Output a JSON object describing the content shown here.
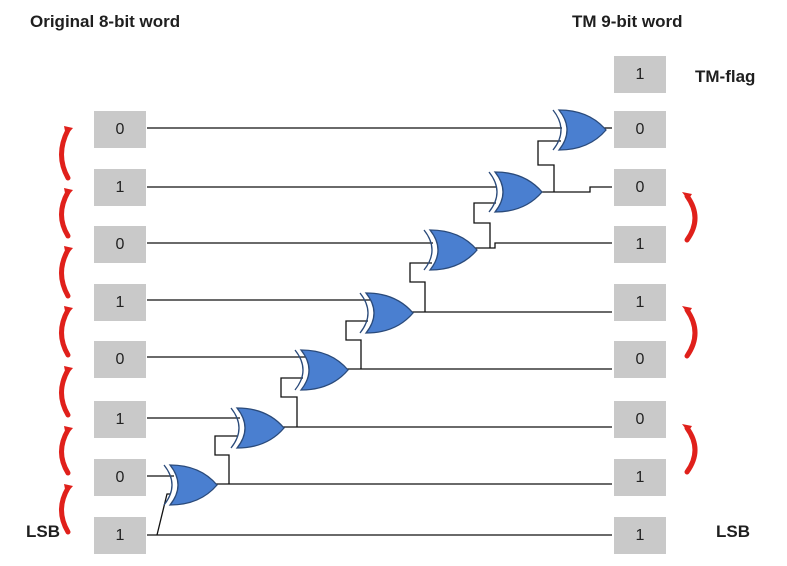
{
  "titles": {
    "original": "Original 8-bit word",
    "tm": "TM 9-bit word"
  },
  "tm_flag": {
    "label": "TM-flag",
    "value": "1"
  },
  "lsb_label": "LSB",
  "original_bits": [
    "0",
    "1",
    "0",
    "1",
    "0",
    "1",
    "0",
    "1"
  ],
  "tm_bits": [
    "0",
    "0",
    "1",
    "1",
    "0",
    "0",
    "1",
    "1"
  ],
  "colors": {
    "gate_fill": "#4a7fd0",
    "gate_stroke": "#2a4a7a",
    "arrow": "#e0201b",
    "box": "#c9c9c9",
    "wire": "#111111"
  },
  "gate_type": "XOR"
}
